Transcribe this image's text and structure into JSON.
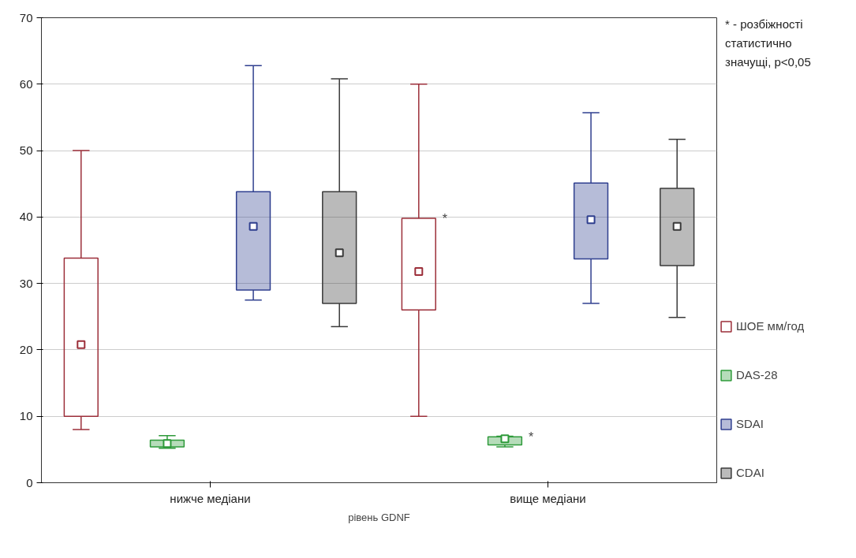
{
  "chart_data": {
    "type": "box",
    "xlabel": "рівень GDNF",
    "categories": [
      "нижче медіани",
      "вище медіани"
    ],
    "series": [
      {
        "name": "ШОЕ мм/год",
        "color": "#9c2f3a",
        "value_labels": [
          null,
          "*"
        ],
        "boxes": [
          {
            "low": 8,
            "q1": 10,
            "median": 20.8,
            "q3": 33.8,
            "high": 50
          },
          {
            "low": 10,
            "q1": 26,
            "median": 31.8,
            "q3": 39.8,
            "high": 60
          }
        ]
      },
      {
        "name": "DAS-28",
        "color": "#2e9a3a",
        "value_labels": [
          null,
          "*"
        ],
        "boxes": [
          {
            "low": 5.2,
            "q1": 5.4,
            "median": 5.9,
            "q3": 6.4,
            "high": 7.1
          },
          {
            "low": 5.4,
            "q1": 5.7,
            "median": 6.6,
            "q3": 6.9,
            "high": 7.0
          }
        ]
      },
      {
        "name": "SDAI",
        "color": "#2f3f8f",
        "boxes": [
          {
            "low": 27.5,
            "q1": 29,
            "median": 38.6,
            "q3": 43.8,
            "high": 62.8
          },
          {
            "low": 27,
            "q1": 33.7,
            "median": 39.6,
            "q3": 45.1,
            "high": 55.7
          }
        ]
      },
      {
        "name": "CDAI",
        "color": "#3a3a3a",
        "boxes": [
          {
            "low": 23.5,
            "q1": 27,
            "median": 34.6,
            "q3": 43.8,
            "high": 60.8
          },
          {
            "low": 24.9,
            "q1": 32.7,
            "median": 38.6,
            "q3": 44.3,
            "high": 51.7
          }
        ]
      }
    ],
    "ylim": [
      0,
      70
    ],
    "yticks": [
      0,
      10,
      20,
      30,
      40,
      50,
      60,
      70
    ],
    "grid": "y",
    "legend": "right",
    "marker": "square",
    "annotations": [
      "* - розбіжності статистично значущі, p<0,05"
    ]
  }
}
